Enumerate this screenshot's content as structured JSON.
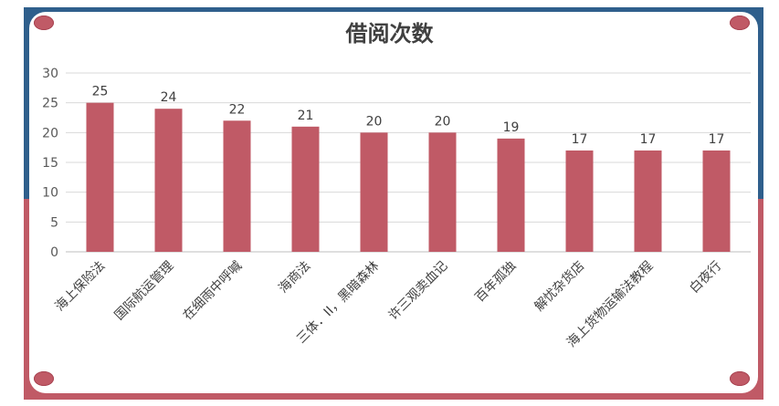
{
  "chart_data": {
    "type": "bar",
    "title": "借阅次数",
    "categories": [
      "海上保险法",
      "国际航运管理",
      "在细雨中呼喊",
      "海商法",
      "三体．II，黑暗森林",
      "许三观卖血记",
      "百年孤独",
      "解忧杂货店",
      "海上货物运输法教程",
      "白夜行"
    ],
    "values": [
      25,
      24,
      22,
      21,
      20,
      20,
      19,
      17,
      17,
      17
    ],
    "ylim": [
      0,
      30
    ],
    "yticks": [
      0,
      5,
      10,
      15,
      20,
      25,
      30
    ],
    "grid": true,
    "data_labels": true,
    "colors": {
      "bar": "#c05a66",
      "frame_top": "#2f5f8c",
      "frame_bottom": "#c05a66"
    }
  }
}
